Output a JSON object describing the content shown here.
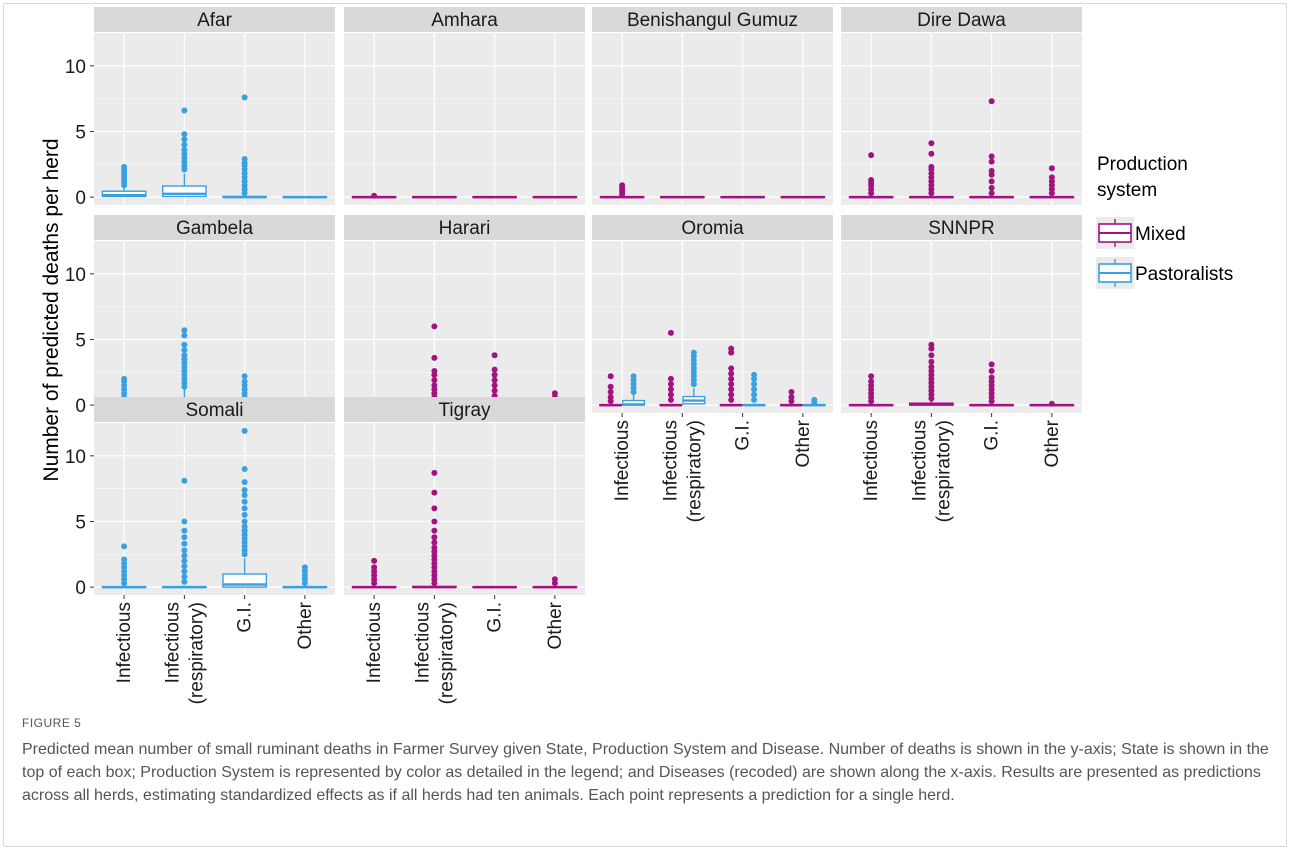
{
  "figure_label": "FIGURE 5",
  "caption": "Predicted mean number of small ruminant deaths in Farmer Survey given State, Production System and Disease. Number of deaths is shown in the y-axis; State is shown in the top of each box; Production System is represented by color as detailed in the legend; and Diseases (recoded) are shown along the x-axis. Results are presented as predictions across all herds, estimating standardized effects as if all herds had ten animals. Each point represents a prediction for a single herd.",
  "colors": {
    "Mixed": "#a3127f",
    "Pastoralists": "#3aa0e0",
    "panel_bg": "#ebebeb",
    "strip_bg": "#d9d9d9",
    "grid": "#ffffff"
  },
  "chart_data": {
    "type": "boxplot",
    "ylabel": "Number of predicted deaths per herd",
    "xlabel": "",
    "ylim": [
      0,
      12.5
    ],
    "yticks": [
      0,
      5,
      10
    ],
    "categories": [
      "Infectious",
      "Infectious\n(respiratory)",
      "G.I.",
      "Other"
    ],
    "legend": {
      "title": "Production\nsystem",
      "position": "right",
      "entries": [
        "Mixed",
        "Pastoralists"
      ]
    },
    "panels": [
      {
        "state": "Afar",
        "boxes": [
          {
            "category": "Infectious",
            "system": "Pastoralists",
            "q1": 0.05,
            "median": 0.15,
            "q3": 0.45,
            "whisker_high": 0.8,
            "outliers": [
              0.9,
              1.1,
              1.3,
              1.5,
              1.7,
              1.9,
              2.1,
              2.3
            ]
          },
          {
            "category": "Infectious\n(respiratory)",
            "system": "Pastoralists",
            "q1": 0.05,
            "median": 0.25,
            "q3": 0.85,
            "whisker_high": 1.8,
            "outliers": [
              2.1,
              2.4,
              2.7,
              3.0,
              3.3,
              3.6,
              4.0,
              4.4,
              4.8,
              6.6
            ]
          },
          {
            "category": "G.I.",
            "system": "Pastoralists",
            "q1": 0.0,
            "median": 0.0,
            "q3": 0.05,
            "whisker_high": 0.1,
            "outliers": [
              0.3,
              0.6,
              0.9,
              1.2,
              1.5,
              1.8,
              2.1,
              2.4,
              2.6,
              2.9,
              7.6
            ]
          },
          {
            "category": "Other",
            "system": "Pastoralists",
            "q1": 0.0,
            "median": 0.0,
            "q3": 0.02,
            "whisker_high": 0.05,
            "outliers": []
          }
        ]
      },
      {
        "state": "Amhara",
        "boxes": [
          {
            "category": "Infectious",
            "system": "Mixed",
            "q1": 0.0,
            "median": 0.0,
            "q3": 0.02,
            "whisker_high": 0.05,
            "outliers": [
              0.1
            ]
          },
          {
            "category": "Infectious\n(respiratory)",
            "system": "Mixed",
            "q1": 0.0,
            "median": 0.0,
            "q3": 0.02,
            "whisker_high": 0.05,
            "outliers": []
          },
          {
            "category": "G.I.",
            "system": "Mixed",
            "q1": 0.0,
            "median": 0.0,
            "q3": 0.02,
            "whisker_high": 0.05,
            "outliers": []
          },
          {
            "category": "Other",
            "system": "Mixed",
            "q1": 0.0,
            "median": 0.0,
            "q3": 0.02,
            "whisker_high": 0.05,
            "outliers": []
          }
        ]
      },
      {
        "state": "Benishangul Gumuz",
        "boxes": [
          {
            "category": "Infectious",
            "system": "Mixed",
            "q1": 0.0,
            "median": 0.0,
            "q3": 0.02,
            "whisker_high": 0.1,
            "outliers": [
              0.2,
              0.4,
              0.6,
              0.8,
              0.9
            ]
          },
          {
            "category": "Infectious\n(respiratory)",
            "system": "Mixed",
            "q1": 0.0,
            "median": 0.0,
            "q3": 0.02,
            "whisker_high": 0.05,
            "outliers": []
          },
          {
            "category": "G.I.",
            "system": "Mixed",
            "q1": 0.0,
            "median": 0.0,
            "q3": 0.02,
            "whisker_high": 0.05,
            "outliers": []
          },
          {
            "category": "Other",
            "system": "Mixed",
            "q1": 0.0,
            "median": 0.0,
            "q3": 0.02,
            "whisker_high": 0.05,
            "outliers": []
          }
        ]
      },
      {
        "state": "Dire Dawa",
        "boxes": [
          {
            "category": "Infectious",
            "system": "Mixed",
            "q1": 0.0,
            "median": 0.0,
            "q3": 0.02,
            "whisker_high": 0.1,
            "outliers": [
              0.3,
              0.6,
              0.9,
              1.1,
              1.3,
              3.2
            ]
          },
          {
            "category": "Infectious\n(respiratory)",
            "system": "Mixed",
            "q1": 0.0,
            "median": 0.0,
            "q3": 0.02,
            "whisker_high": 0.1,
            "outliers": [
              0.3,
              0.6,
              0.9,
              1.2,
              1.5,
              1.8,
              2.1,
              2.3,
              3.3,
              4.1
            ]
          },
          {
            "category": "G.I.",
            "system": "Mixed",
            "q1": 0.0,
            "median": 0.0,
            "q3": 0.02,
            "whisker_high": 0.1,
            "outliers": [
              0.3,
              0.7,
              1.2,
              1.7,
              2.0,
              2.7,
              3.1,
              7.3
            ]
          },
          {
            "category": "Other",
            "system": "Mixed",
            "q1": 0.0,
            "median": 0.0,
            "q3": 0.02,
            "whisker_high": 0.1,
            "outliers": [
              0.3,
              0.6,
              0.9,
              1.2,
              1.5,
              2.2
            ]
          }
        ]
      },
      {
        "state": "Gambela",
        "boxes": [
          {
            "category": "Infectious",
            "system": "Pastoralists",
            "q1": 0.0,
            "median": 0.0,
            "q3": 0.02,
            "whisker_high": 0.1,
            "outliers": [
              0.3,
              0.6,
              0.9,
              1.2,
              1.5,
              1.8,
              2.0
            ]
          },
          {
            "category": "Infectious\n(respiratory)",
            "system": "Pastoralists",
            "q1": 0.05,
            "median": 0.25,
            "q3": 0.55,
            "whisker_high": 1.2,
            "outliers": [
              1.4,
              1.7,
              2.0,
              2.3,
              2.6,
              2.9,
              3.2,
              3.5,
              3.8,
              4.2,
              4.6,
              5.3,
              5.7
            ]
          },
          {
            "category": "G.I.",
            "system": "Pastoralists",
            "q1": 0.0,
            "median": 0.0,
            "q3": 0.02,
            "whisker_high": 0.1,
            "outliers": [
              0.3,
              0.6,
              0.9,
              1.2,
              1.5,
              1.8,
              2.2
            ]
          },
          {
            "category": "Other",
            "system": "Pastoralists",
            "q1": 0.0,
            "median": 0.0,
            "q3": 0.02,
            "whisker_high": 0.05,
            "outliers": [
              0.2,
              0.3
            ]
          }
        ]
      },
      {
        "state": "Harari",
        "boxes": [
          {
            "category": "Infectious",
            "system": "Mixed",
            "q1": 0.0,
            "median": 0.0,
            "q3": 0.02,
            "whisker_high": 0.05,
            "outliers": []
          },
          {
            "category": "Infectious\n(respiratory)",
            "system": "Mixed",
            "q1": 0.0,
            "median": 0.0,
            "q3": 0.02,
            "whisker_high": 0.1,
            "outliers": [
              0.3,
              0.6,
              0.9,
              1.2,
              1.5,
              1.9,
              2.3,
              2.6,
              3.6,
              6.0
            ]
          },
          {
            "category": "G.I.",
            "system": "Mixed",
            "q1": 0.0,
            "median": 0.0,
            "q3": 0.02,
            "whisker_high": 0.1,
            "outliers": [
              0.3,
              0.7,
              1.1,
              1.5,
              1.9,
              2.3,
              2.7,
              3.8
            ]
          },
          {
            "category": "Other",
            "system": "Mixed",
            "q1": 0.0,
            "median": 0.0,
            "q3": 0.02,
            "whisker_high": 0.1,
            "outliers": [
              0.3,
              0.6,
              0.9
            ]
          }
        ]
      },
      {
        "state": "Oromia",
        "boxes": [
          {
            "category": "Infectious",
            "system": "Mixed",
            "q1": 0.0,
            "median": 0.0,
            "q3": 0.02,
            "whisker_high": 0.1,
            "outliers": [
              0.3,
              0.6,
              1.0,
              1.4,
              2.2
            ]
          },
          {
            "category": "Infectious",
            "system": "Pastoralists",
            "q1": 0.0,
            "median": 0.05,
            "q3": 0.35,
            "whisker_high": 0.8,
            "outliers": [
              1.0,
              1.3,
              1.6,
              1.9,
              2.2
            ]
          },
          {
            "category": "Infectious\n(respiratory)",
            "system": "Mixed",
            "q1": 0.0,
            "median": 0.0,
            "q3": 0.02,
            "whisker_high": 0.1,
            "outliers": [
              0.4,
              0.8,
              1.2,
              1.6,
              2.0,
              5.5
            ]
          },
          {
            "category": "Infectious\n(respiratory)",
            "system": "Pastoralists",
            "q1": 0.1,
            "median": 0.35,
            "q3": 0.65,
            "whisker_high": 1.3,
            "outliers": [
              1.6,
              1.9,
              2.2,
              2.5,
              2.8,
              3.1,
              3.4,
              3.7,
              4.0
            ]
          },
          {
            "category": "G.I.",
            "system": "Mixed",
            "q1": 0.0,
            "median": 0.0,
            "q3": 0.02,
            "whisker_high": 0.1,
            "outliers": [
              0.4,
              0.8,
              1.2,
              1.6,
              2.0,
              2.4,
              2.8,
              4.0,
              4.3
            ]
          },
          {
            "category": "G.I.",
            "system": "Pastoralists",
            "q1": 0.0,
            "median": 0.0,
            "q3": 0.02,
            "whisker_high": 0.1,
            "outliers": [
              0.4,
              0.8,
              1.2,
              1.6,
              2.0,
              2.3
            ]
          },
          {
            "category": "Other",
            "system": "Mixed",
            "q1": 0.0,
            "median": 0.0,
            "q3": 0.02,
            "whisker_high": 0.05,
            "outliers": [
              0.3,
              0.6,
              1.0
            ]
          },
          {
            "category": "Other",
            "system": "Pastoralists",
            "q1": 0.0,
            "median": 0.0,
            "q3": 0.02,
            "whisker_high": 0.05,
            "outliers": [
              0.2,
              0.4
            ]
          }
        ]
      },
      {
        "state": "SNNPR",
        "boxes": [
          {
            "category": "Infectious",
            "system": "Mixed",
            "q1": 0.0,
            "median": 0.0,
            "q3": 0.02,
            "whisker_high": 0.1,
            "outliers": [
              0.3,
              0.6,
              0.9,
              1.2,
              1.5,
              1.8,
              2.2
            ]
          },
          {
            "category": "Infectious\n(respiratory)",
            "system": "Mixed",
            "q1": 0.0,
            "median": 0.05,
            "q3": 0.15,
            "whisker_high": 0.3,
            "outliers": [
              0.5,
              0.8,
              1.1,
              1.4,
              1.7,
              2.0,
              2.3,
              2.6,
              2.9,
              3.3,
              3.8,
              4.3,
              4.6
            ]
          },
          {
            "category": "G.I.",
            "system": "Mixed",
            "q1": 0.0,
            "median": 0.0,
            "q3": 0.02,
            "whisker_high": 0.1,
            "outliers": [
              0.3,
              0.6,
              0.9,
              1.2,
              1.5,
              1.8,
              2.1,
              2.6,
              3.1
            ]
          },
          {
            "category": "Other",
            "system": "Mixed",
            "q1": 0.0,
            "median": 0.0,
            "q3": 0.02,
            "whisker_high": 0.05,
            "outliers": [
              0.1
            ]
          }
        ]
      },
      {
        "state": "Somali",
        "boxes": [
          {
            "category": "Infectious",
            "system": "Pastoralists",
            "q1": 0.0,
            "median": 0.0,
            "q3": 0.02,
            "whisker_high": 0.1,
            "outliers": [
              0.3,
              0.6,
              0.9,
              1.2,
              1.5,
              1.8,
              2.1,
              3.1
            ]
          },
          {
            "category": "Infectious\n(respiratory)",
            "system": "Pastoralists",
            "q1": 0.0,
            "median": 0.0,
            "q3": 0.02,
            "whisker_high": 0.1,
            "outliers": [
              0.4,
              0.8,
              1.2,
              1.6,
              2.0,
              2.4,
              2.8,
              3.3,
              3.8,
              4.3,
              5.0,
              8.1
            ]
          },
          {
            "category": "G.I.",
            "system": "Pastoralists",
            "q1": 0.0,
            "median": 0.2,
            "q3": 1.0,
            "whisker_high": 2.2,
            "outliers": [
              2.5,
              2.8,
              3.1,
              3.4,
              3.7,
              4.0,
              4.3,
              4.6,
              5.0,
              5.5,
              6.0,
              6.5,
              7.0,
              7.4,
              8.0,
              9.0,
              11.9
            ]
          },
          {
            "category": "Other",
            "system": "Pastoralists",
            "q1": 0.0,
            "median": 0.0,
            "q3": 0.02,
            "whisker_high": 0.1,
            "outliers": [
              0.3,
              0.6,
              0.9,
              1.2,
              1.5
            ]
          }
        ]
      },
      {
        "state": "Tigray",
        "boxes": [
          {
            "category": "Infectious",
            "system": "Mixed",
            "q1": 0.0,
            "median": 0.0,
            "q3": 0.02,
            "whisker_high": 0.1,
            "outliers": [
              0.3,
              0.6,
              0.9,
              1.2,
              1.5,
              2.0
            ]
          },
          {
            "category": "Infectious\n(respiratory)",
            "system": "Mixed",
            "q1": 0.0,
            "median": 0.0,
            "q3": 0.05,
            "whisker_high": 0.1,
            "outliers": [
              0.3,
              0.6,
              0.9,
              1.2,
              1.5,
              1.8,
              2.1,
              2.4,
              2.7,
              3.0,
              3.4,
              3.8,
              4.3,
              5.0,
              6.0,
              7.2,
              8.7
            ]
          },
          {
            "category": "G.I.",
            "system": "Mixed",
            "q1": 0.0,
            "median": 0.0,
            "q3": 0.02,
            "whisker_high": 0.05,
            "outliers": []
          },
          {
            "category": "Other",
            "system": "Mixed",
            "q1": 0.0,
            "median": 0.0,
            "q3": 0.02,
            "whisker_high": 0.1,
            "outliers": [
              0.3,
              0.6
            ]
          }
        ]
      }
    ]
  }
}
